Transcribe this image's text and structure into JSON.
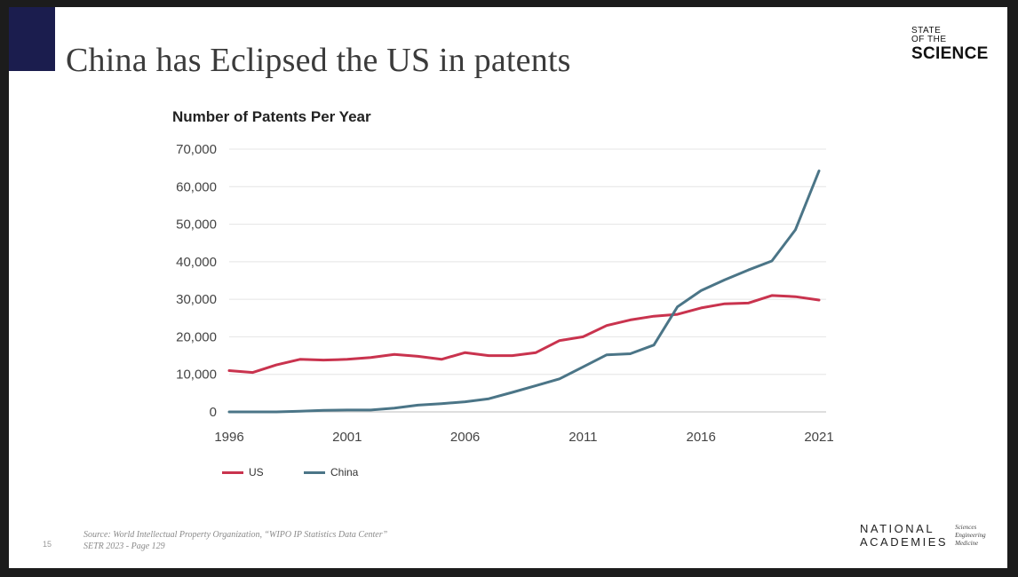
{
  "slide": {
    "title": "China has Eclipsed the US in patents",
    "page_number": "15",
    "source_line1": "Source: World Intellectual Property Organization, “WIPO IP Statistics Data Center”",
    "source_line2": "SETR 2023 - Page 129",
    "logo_top_small1": "STATE",
    "logo_top_small2": "OF THE",
    "logo_top_big": "SCIENCE",
    "logo_bottom_line1": "NATIONAL",
    "logo_bottom_line2": "ACADEMIES",
    "logo_bottom_sub1": "Sciences",
    "logo_bottom_sub2": "Engineering",
    "logo_bottom_sub3": "Medicine",
    "accent_color": "#1b1d4e"
  },
  "chart_data": {
    "type": "line",
    "title": "Number of Patents Per Year",
    "xlabel": "",
    "ylabel": "",
    "x": [
      1996,
      1997,
      1998,
      1999,
      2000,
      2001,
      2002,
      2003,
      2004,
      2005,
      2006,
      2007,
      2008,
      2009,
      2010,
      2011,
      2012,
      2013,
      2014,
      2015,
      2016,
      2017,
      2018,
      2019,
      2020,
      2021
    ],
    "xticks": [
      1996,
      2001,
      2006,
      2011,
      2016,
      2021
    ],
    "yticks": [
      0,
      10000,
      20000,
      30000,
      40000,
      50000,
      60000,
      70000
    ],
    "ytick_labels": [
      "0",
      "10,000",
      "20,000",
      "30,000",
      "40,000",
      "50,000",
      "60,000",
      "70,000"
    ],
    "ylim": [
      0,
      70000
    ],
    "xlim": [
      1996,
      2021
    ],
    "grid": "horizontal",
    "legend_position": "bottom-left",
    "series": [
      {
        "name": "US",
        "color": "#c9334e",
        "values": [
          11000,
          10500,
          12500,
          14000,
          13800,
          14000,
          14500,
          15300,
          14800,
          14000,
          15800,
          15000,
          15000,
          15800,
          19000,
          20000,
          23000,
          24500,
          25500,
          26000,
          27700,
          28800,
          29000,
          31000,
          30700,
          29800
        ]
      },
      {
        "name": "China",
        "color": "#4b7587",
        "values": [
          0,
          0,
          0,
          200,
          400,
          500,
          500,
          1000,
          1800,
          2200,
          2700,
          3500,
          5200,
          7000,
          8800,
          12000,
          15200,
          15500,
          17800,
          28000,
          32300,
          35200,
          37800,
          40200,
          48500,
          64200
        ]
      }
    ]
  }
}
